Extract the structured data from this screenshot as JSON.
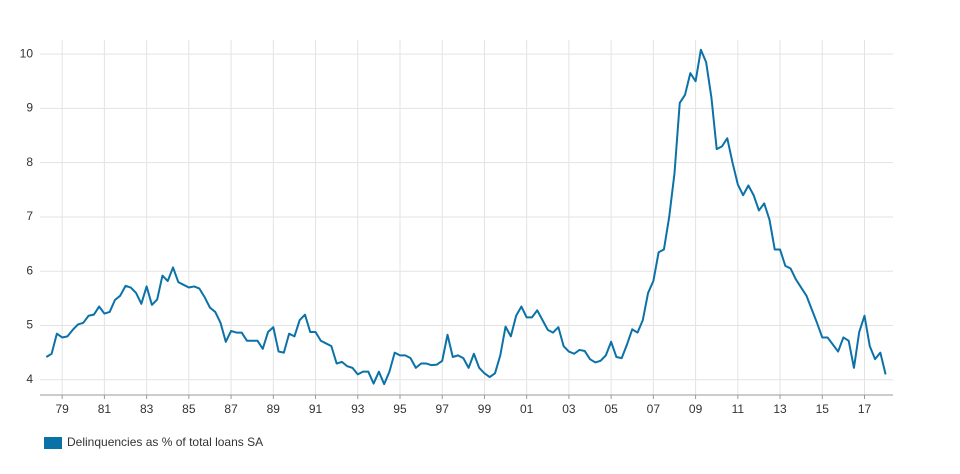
{
  "chart_data": {
    "type": "line",
    "x": [
      1978.25,
      1978.5,
      1978.75,
      1979,
      1979.25,
      1979.5,
      1979.75,
      1980,
      1980.25,
      1980.5,
      1980.75,
      1981,
      1981.25,
      1981.5,
      1981.75,
      1982,
      1982.25,
      1982.5,
      1982.75,
      1983,
      1983.25,
      1983.5,
      1983.75,
      1984,
      1984.25,
      1984.5,
      1984.75,
      1985,
      1985.25,
      1985.5,
      1985.75,
      1986,
      1986.25,
      1986.5,
      1986.75,
      1987,
      1987.25,
      1987.5,
      1987.75,
      1988,
      1988.25,
      1988.5,
      1988.75,
      1989,
      1989.25,
      1989.5,
      1989.75,
      1990,
      1990.25,
      1990.5,
      1990.75,
      1991,
      1991.25,
      1991.5,
      1991.75,
      1992,
      1992.25,
      1992.5,
      1992.75,
      1993,
      1993.25,
      1993.5,
      1993.75,
      1994,
      1994.25,
      1994.5,
      1994.75,
      1995,
      1995.25,
      1995.5,
      1995.75,
      1996,
      1996.25,
      1996.5,
      1996.75,
      1997,
      1997.25,
      1997.5,
      1997.75,
      1998,
      1998.25,
      1998.5,
      1998.75,
      1999,
      1999.25,
      1999.5,
      1999.75,
      2000,
      2000.25,
      2000.5,
      2000.75,
      2001,
      2001.25,
      2001.5,
      2001.75,
      2002,
      2002.25,
      2002.5,
      2002.75,
      2003,
      2003.25,
      2003.5,
      2003.75,
      2004,
      2004.25,
      2004.5,
      2004.75,
      2005,
      2005.25,
      2005.5,
      2005.75,
      2006,
      2006.25,
      2006.5,
      2006.75,
      2007,
      2007.25,
      2007.5,
      2007.75,
      2008,
      2008.25,
      2008.5,
      2008.75,
      2009,
      2009.25,
      2009.5,
      2009.75,
      2010,
      2010.25,
      2010.5,
      2010.75,
      2011,
      2011.25,
      2011.5,
      2011.75,
      2012,
      2012.25,
      2012.5,
      2012.75,
      2013,
      2013.25,
      2013.5,
      2013.75,
      2014,
      2014.25,
      2014.5,
      2014.75,
      2015,
      2015.25,
      2015.5,
      2015.75,
      2016,
      2016.25,
      2016.5,
      2016.75,
      2017,
      2017.25,
      2017.5,
      2017.75,
      2018
    ],
    "series": [
      {
        "name": "Delinquencies as % of total loans SA",
        "color": "#0b72a8",
        "values": [
          4.42,
          4.48,
          4.85,
          4.78,
          4.8,
          4.92,
          5.02,
          5.05,
          5.18,
          5.2,
          5.35,
          5.22,
          5.25,
          5.47,
          5.55,
          5.73,
          5.7,
          5.6,
          5.4,
          5.72,
          5.38,
          5.48,
          5.92,
          5.82,
          6.07,
          5.8,
          5.75,
          5.7,
          5.72,
          5.68,
          5.52,
          5.33,
          5.25,
          5.05,
          4.7,
          4.9,
          4.87,
          4.87,
          4.72,
          4.72,
          4.72,
          4.57,
          4.88,
          4.97,
          4.52,
          4.5,
          4.85,
          4.8,
          5.1,
          5.2,
          4.88,
          4.88,
          4.72,
          4.67,
          4.62,
          4.3,
          4.33,
          4.25,
          4.22,
          4.1,
          4.15,
          4.15,
          3.93,
          4.15,
          3.92,
          4.15,
          4.5,
          4.45,
          4.45,
          4.4,
          4.22,
          4.3,
          4.3,
          4.27,
          4.28,
          4.35,
          4.83,
          4.42,
          4.45,
          4.4,
          4.22,
          4.48,
          4.22,
          4.12,
          4.05,
          4.12,
          4.45,
          4.98,
          4.8,
          5.18,
          5.35,
          5.15,
          5.15,
          5.28,
          5.1,
          4.92,
          4.87,
          4.97,
          4.62,
          4.52,
          4.48,
          4.55,
          4.53,
          4.38,
          4.32,
          4.35,
          4.45,
          4.7,
          4.42,
          4.4,
          4.65,
          4.93,
          4.87,
          5.1,
          5.6,
          5.82,
          6.35,
          6.4,
          7.0,
          7.8,
          9.1,
          9.25,
          9.65,
          9.5,
          10.08,
          9.85,
          9.2,
          8.25,
          8.3,
          8.45,
          8.0,
          7.6,
          7.4,
          7.58,
          7.4,
          7.12,
          7.25,
          6.95,
          6.4,
          6.4,
          6.1,
          6.05,
          5.85,
          5.7,
          5.55,
          5.3,
          5.05,
          4.78,
          4.78,
          4.65,
          4.52,
          4.78,
          4.72,
          4.22,
          4.88,
          5.18,
          4.62,
          4.38,
          4.5,
          4.1
        ]
      }
    ],
    "xlim": [
      1977.95,
      2018.35
    ],
    "xticks": [
      {
        "value": 1979,
        "label": "79"
      },
      {
        "value": 1981,
        "label": "81"
      },
      {
        "value": 1983,
        "label": "83"
      },
      {
        "value": 1985,
        "label": "85"
      },
      {
        "value": 1987,
        "label": "87"
      },
      {
        "value": 1989,
        "label": "89"
      },
      {
        "value": 1991,
        "label": "91"
      },
      {
        "value": 1993,
        "label": "93"
      },
      {
        "value": 1995,
        "label": "95"
      },
      {
        "value": 1997,
        "label": "97"
      },
      {
        "value": 1999,
        "label": "99"
      },
      {
        "value": 2001,
        "label": "01"
      },
      {
        "value": 2003,
        "label": "03"
      },
      {
        "value": 2005,
        "label": "05"
      },
      {
        "value": 2007,
        "label": "07"
      },
      {
        "value": 2009,
        "label": "09"
      },
      {
        "value": 2011,
        "label": "11"
      },
      {
        "value": 2013,
        "label": "13"
      },
      {
        "value": 2015,
        "label": "15"
      },
      {
        "value": 2017,
        "label": "17"
      }
    ],
    "ylim": [
      3.72,
      10.26
    ],
    "yticks": [
      4,
      5,
      6,
      7,
      8,
      9,
      10
    ],
    "grid": true
  }
}
